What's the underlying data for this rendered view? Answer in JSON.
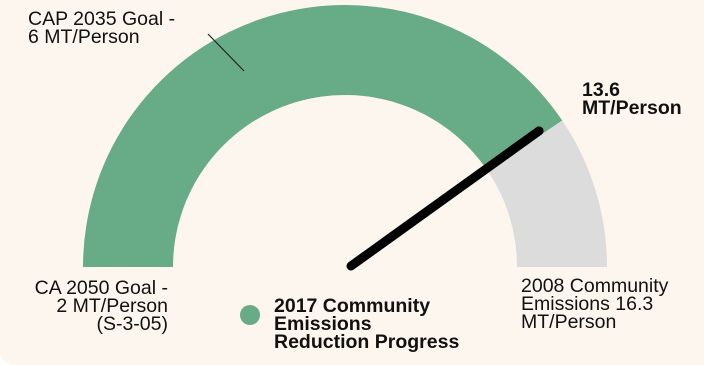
{
  "colors": {
    "progress": "#67ab87",
    "remaining": "#dcdcdc",
    "needle": "#000000",
    "background": "#fdf6ee"
  },
  "chart_data": {
    "type": "gauge",
    "unit": "MT/Person",
    "min": 2,
    "max": 16.3,
    "value": 13.6,
    "annotated_targets": [
      {
        "value": 6
      }
    ],
    "labels": {
      "min": [
        "CA 2050 Goal -",
        "2 MT/Person",
        "(S-3-05)"
      ],
      "max": [
        "2008 Community",
        "Emissions 16.3",
        "MT/Person"
      ],
      "target": [
        "CAP 2035 Goal  -",
        "6 MT/Person"
      ],
      "value": [
        "13.6",
        "MT/Person"
      ]
    },
    "legend": [
      "2017 Community",
      "Emissions",
      "Reduction Progress"
    ]
  }
}
